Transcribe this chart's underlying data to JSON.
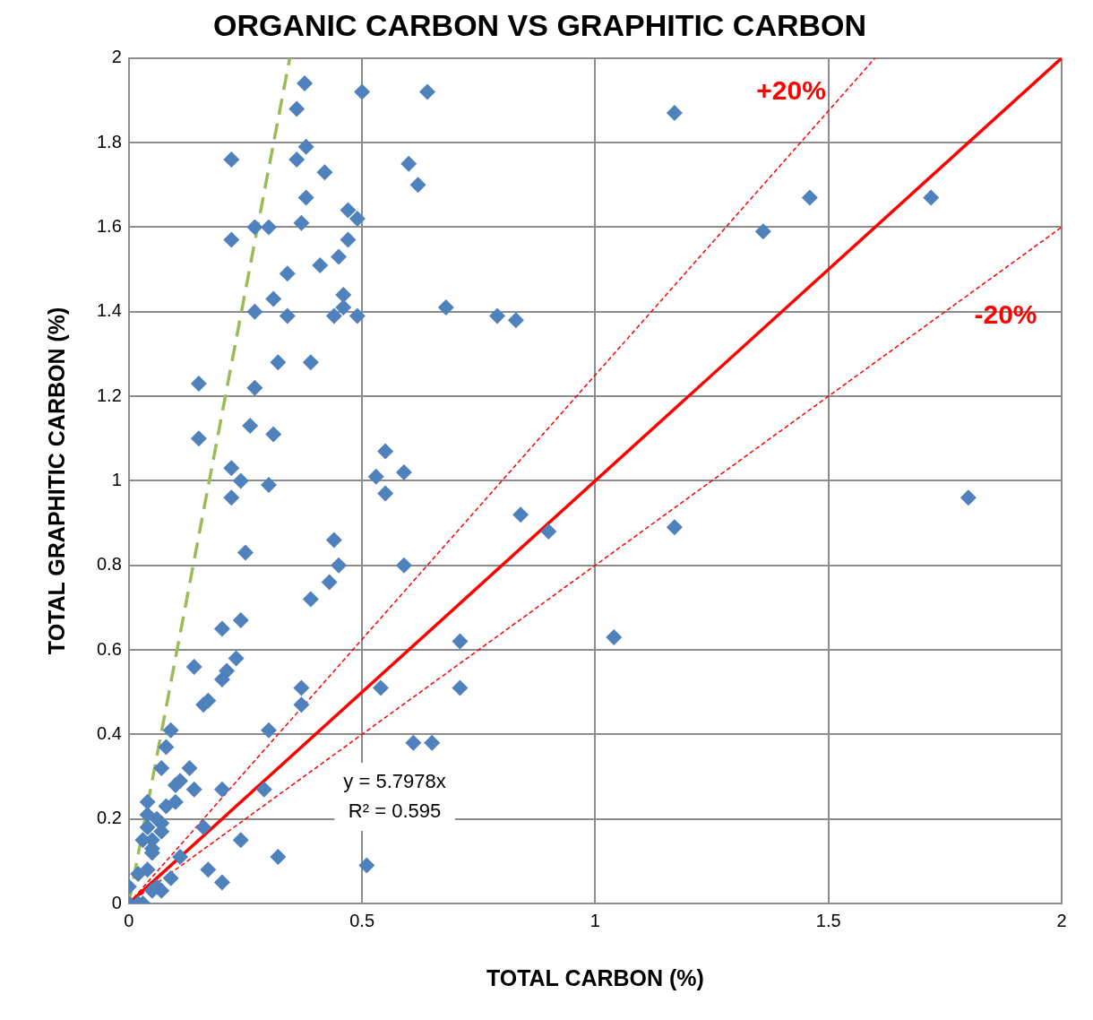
{
  "chart_data": {
    "type": "scatter",
    "title": "ORGANIC CARBON VS GRAPHITIC CARBON",
    "xlabel": "TOTAL CARBON (%)",
    "ylabel": "TOTAL GRAPHITIC CARBON (%)",
    "xlim": [
      0,
      2
    ],
    "xticks": [
      0,
      0.5,
      1,
      1.5,
      2
    ],
    "ylim": [
      0,
      2
    ],
    "yticks": [
      0,
      0.2,
      0.4,
      0.6,
      0.8,
      1,
      1.2,
      1.4,
      1.6,
      1.8,
      2
    ],
    "grid": true,
    "legend": false,
    "marker": "diamond",
    "series": [
      {
        "color": "#4f81bd",
        "x": [
          0.377,
          0.5,
          0.64,
          0.36,
          1.17,
          0.22,
          0.36,
          0.38,
          0.42,
          0.6,
          0.62,
          0.38,
          0.47,
          0.49,
          1.46,
          1.72,
          1.36,
          0.22,
          0.27,
          0.3,
          0.37,
          0.47,
          0.45,
          0.34,
          0.41,
          0.46,
          0.46,
          0.44,
          0.49,
          0.27,
          0.34,
          0.31,
          0.68,
          0.79,
          0.83,
          0.32,
          0.39,
          0.15,
          0.27,
          0.26,
          0.31,
          0.15,
          0.55,
          0.53,
          0.59,
          0.55,
          0.22,
          0.24,
          0.3,
          0.22,
          0.84,
          0.9,
          1.17,
          1.8,
          0.44,
          0.25,
          0.45,
          0.59,
          0.43,
          0.39,
          0.2,
          0.24,
          1.04,
          0.71,
          0.14,
          0.23,
          0.21,
          0.2,
          0.37,
          0.54,
          0.71,
          0.17,
          0.16,
          0.37,
          0.09,
          0.3,
          0.61,
          0.65,
          0.08,
          0.07,
          0.13,
          0.11,
          0.1,
          0.14,
          0.2,
          0.29,
          0.04,
          0.1,
          0.08,
          0.04,
          0.06,
          0.07,
          0.04,
          0.16,
          0.07,
          0.03,
          0.05,
          0.24,
          0.05,
          0.05,
          0.11,
          0.32,
          0.51,
          0.17,
          0.04,
          0.02,
          0.09,
          0.2,
          0.06,
          0,
          0.05,
          0.07,
          0,
          0.02,
          0.03
        ],
        "values": [
          1.94,
          1.92,
          1.92,
          1.88,
          1.87,
          1.76,
          1.76,
          1.79,
          1.73,
          1.75,
          1.7,
          1.67,
          1.64,
          1.62,
          1.67,
          1.67,
          1.59,
          1.57,
          1.6,
          1.6,
          1.61,
          1.57,
          1.53,
          1.49,
          1.51,
          1.44,
          1.41,
          1.39,
          1.39,
          1.4,
          1.39,
          1.43,
          1.41,
          1.39,
          1.38,
          1.28,
          1.28,
          1.23,
          1.22,
          1.13,
          1.11,
          1.1,
          1.07,
          1.01,
          1.02,
          0.97,
          1.03,
          1,
          0.99,
          0.96,
          0.92,
          0.88,
          0.89,
          0.96,
          0.86,
          0.83,
          0.8,
          0.8,
          0.76,
          0.72,
          0.65,
          0.67,
          0.63,
          0.62,
          0.56,
          0.58,
          0.55,
          0.53,
          0.51,
          0.51,
          0.51,
          0.48,
          0.47,
          0.47,
          0.41,
          0.41,
          0.38,
          0.38,
          0.37,
          0.32,
          0.32,
          0.29,
          0.28,
          0.27,
          0.27,
          0.27,
          0.24,
          0.24,
          0.23,
          0.21,
          0.2,
          0.19,
          0.18,
          0.18,
          0.17,
          0.15,
          0.15,
          0.15,
          0.13,
          0.12,
          0.11,
          0.11,
          0.09,
          0.08,
          0.08,
          0.07,
          0.06,
          0.05,
          0.04,
          0.04,
          0.03,
          0.03,
          0,
          0,
          0
        ]
      },
      {
        "type": "line",
        "color": "#ff0000",
        "marker": "none",
        "line_style": "solid",
        "x": [
          0,
          2
        ],
        "values": [
          0,
          2
        ]
      },
      {
        "type": "line",
        "color": "#ff0000",
        "marker": "none",
        "line_style": "dotted",
        "x": [
          0,
          1.6
        ],
        "values": [
          0,
          2
        ]
      },
      {
        "type": "line",
        "color": "#ff0000",
        "marker": "none",
        "line_style": "dotted",
        "x": [
          0,
          2
        ],
        "values": [
          0,
          1.6
        ]
      },
      {
        "type": "line",
        "color": "#9bbb59",
        "marker": "none",
        "line_style": "dashed",
        "x": [
          0,
          0.345
        ],
        "values": [
          0,
          2
        ]
      }
    ],
    "annotations": [
      "+20%",
      "-20%",
      "y = 5.7978x",
      "R² = 0.595"
    ]
  }
}
